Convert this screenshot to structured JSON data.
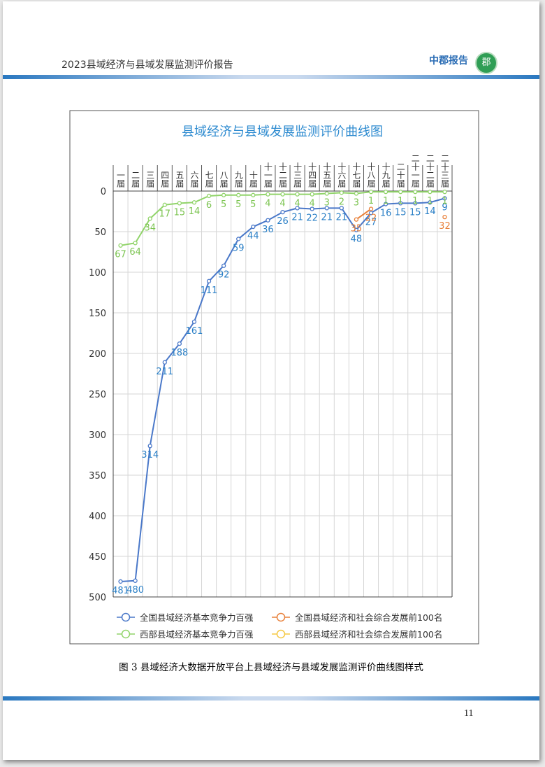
{
  "header": {
    "title": "2023县域经济与县域发展监测评价报告",
    "logo": "中郡报告",
    "logo_mark": "郡"
  },
  "chart_data": {
    "type": "line",
    "title": "县域经济与县域发展监测评价曲线图",
    "categories": [
      "一届",
      "二届",
      "三届",
      "四届",
      "五届",
      "六届",
      "七届",
      "八届",
      "九届",
      "十届",
      "十一届",
      "十二届",
      "十三届",
      "十四届",
      "十五届",
      "十六届",
      "十七届",
      "十八届",
      "十九届",
      "二十届",
      "二十一届",
      "二十二届",
      "二十三届"
    ],
    "ylim": [
      0,
      500
    ],
    "y_inverted": true,
    "yticks": [
      0,
      50,
      100,
      150,
      200,
      250,
      300,
      350,
      400,
      450,
      500
    ],
    "grid": true,
    "legend": "bottom",
    "series": [
      {
        "name": "全国县域经济基本竞争力百强",
        "color": "#4a78c9",
        "label_color": "#2a7fc6",
        "values": [
          481,
          480,
          314,
          211,
          188,
          161,
          111,
          92,
          59,
          44,
          36,
          26,
          21,
          22,
          21,
          21,
          48,
          27,
          16,
          15,
          15,
          14,
          9
        ]
      },
      {
        "name": "全国县域经济和社会综合发展前100名",
        "color": "#e8803a",
        "label_color": "#e8803a",
        "values": [
          null,
          null,
          null,
          null,
          null,
          null,
          null,
          null,
          null,
          null,
          null,
          null,
          null,
          null,
          null,
          null,
          35,
          22,
          null,
          null,
          null,
          null,
          32
        ]
      },
      {
        "name": "西部县域经济基本竞争力百强",
        "color": "#91d46a",
        "label_color": "#7cc451",
        "values": [
          67,
          64,
          34,
          17,
          15,
          14,
          6,
          5,
          5,
          5,
          4,
          4,
          4,
          4,
          3,
          2,
          3,
          1,
          1,
          1,
          1,
          1,
          1
        ]
      },
      {
        "name": "西部县域经济和社会综合发展前100名",
        "color": "#f5c842",
        "label_color": "#f5c842",
        "values": [
          null,
          null,
          null,
          null,
          null,
          null,
          null,
          null,
          null,
          null,
          null,
          null,
          null,
          null,
          null,
          null,
          null,
          null,
          null,
          null,
          null,
          null,
          null
        ]
      }
    ]
  },
  "caption": "图 3 县域经济大数据开放平台上县域经济与县域发展监测评价曲线图样式",
  "page_number": "11"
}
